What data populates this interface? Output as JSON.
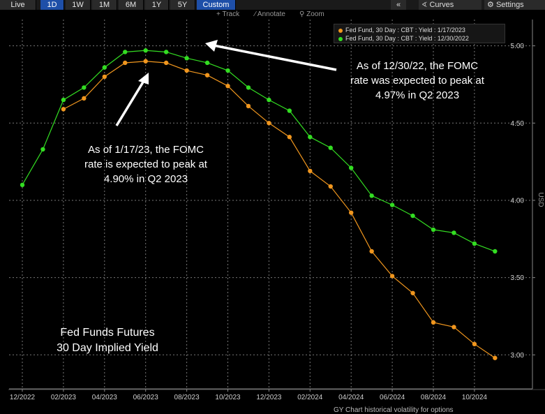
{
  "toolbar": {
    "ranges": [
      "Live",
      "1D",
      "1W",
      "1M",
      "6M",
      "1Y",
      "5Y",
      "Custom"
    ],
    "active_ranges": [
      "1D",
      "Custom"
    ],
    "collapse_icon": "«",
    "curves_label": "Curves",
    "settings_label": "Settings"
  },
  "subtoolbar": {
    "track": "Track",
    "annotate": "Annotate",
    "zoom": "Zoom"
  },
  "legend": [
    {
      "label": "Fed Fund, 30 Day : CBT : Yield : 1/17/2023",
      "color": "#f0961e"
    },
    {
      "label": "Fed Fund, 30 Day : CBT : Yield : 12/30/2022",
      "color": "#33dd22"
    }
  ],
  "annotations": {
    "peak_1230": [
      "As of 12/30/22, the FOMC",
      "rate was expected to peak at",
      "4.97% in Q2 2023"
    ],
    "peak_0117": [
      "As of 1/17/23, the FOMC",
      "rate is expected to peak at",
      "4.90% in Q2 2023"
    ],
    "chart_label": [
      "Fed Funds Futures",
      "30 Day Implied Yield"
    ]
  },
  "footer_text": "GY  Chart historical volatility for options",
  "chart_data": {
    "type": "line",
    "title": "",
    "xlabel": "",
    "ylabel": "USD",
    "ylim": [
      2.78,
      5.17
    ],
    "yticks": [
      3.0,
      3.5,
      4.0,
      4.5,
      5.0
    ],
    "ytick_labels": [
      "3.00",
      "3.50",
      "4.00",
      "4.50",
      "5.00"
    ],
    "xtick_labels": [
      "12/2022",
      "02/2023",
      "04/2023",
      "06/2023",
      "08/2023",
      "10/2023",
      "12/2023",
      "02/2024",
      "04/2024",
      "06/2024",
      "08/2024",
      "10/2024"
    ],
    "x": [
      "12/2022",
      "01/2023",
      "02/2023",
      "03/2023",
      "04/2023",
      "05/2023",
      "06/2023",
      "07/2023",
      "08/2023",
      "09/2023",
      "10/2023",
      "11/2023",
      "12/2023",
      "01/2024",
      "02/2024",
      "03/2024",
      "04/2024",
      "05/2024",
      "06/2024",
      "07/2024",
      "08/2024",
      "09/2024",
      "10/2024",
      "11/2024"
    ],
    "grid": true,
    "legend_position": "top-right",
    "series": [
      {
        "name": "Fed Fund, 30 Day : CBT : Yield : 1/17/2023",
        "color": "#f0961e",
        "values": [
          null,
          null,
          4.59,
          4.66,
          4.8,
          4.89,
          4.9,
          4.89,
          4.84,
          4.81,
          4.74,
          4.61,
          4.5,
          4.41,
          4.19,
          4.09,
          3.92,
          3.67,
          3.51,
          3.4,
          3.21,
          3.18,
          3.07,
          2.98
        ]
      },
      {
        "name": "Fed Fund, 30 Day : CBT : Yield : 12/30/2022",
        "color": "#33dd22",
        "values": [
          4.1,
          4.33,
          4.65,
          4.73,
          4.86,
          4.96,
          4.97,
          4.96,
          4.92,
          4.89,
          4.84,
          4.73,
          4.65,
          4.58,
          4.41,
          4.34,
          4.21,
          4.03,
          3.97,
          3.9,
          3.81,
          3.79,
          3.72,
          3.67
        ]
      }
    ]
  }
}
